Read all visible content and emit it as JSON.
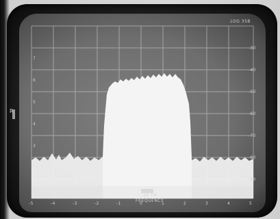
{
  "screen": {
    "top_right_label": "LOG 3SB",
    "bottom_label_1": "10 TH",
    "bottom_label_2": "FREQUENCY",
    "right_scale": [
      "-30",
      "-40",
      "-50",
      "-60",
      "-70",
      "-80",
      "-90"
    ],
    "left_scale": [
      "7",
      "6",
      "5",
      "4",
      "3"
    ],
    "bottom_scale": [
      "-5",
      "-4",
      "-3",
      "-2",
      "-1",
      "0",
      "1",
      "2",
      "3",
      "4",
      "5"
    ],
    "left_marker": "R",
    "colors": {
      "screen": "#6f6f6f",
      "trace": "#f2f2f2",
      "grid": "#d0d0d0"
    }
  }
}
